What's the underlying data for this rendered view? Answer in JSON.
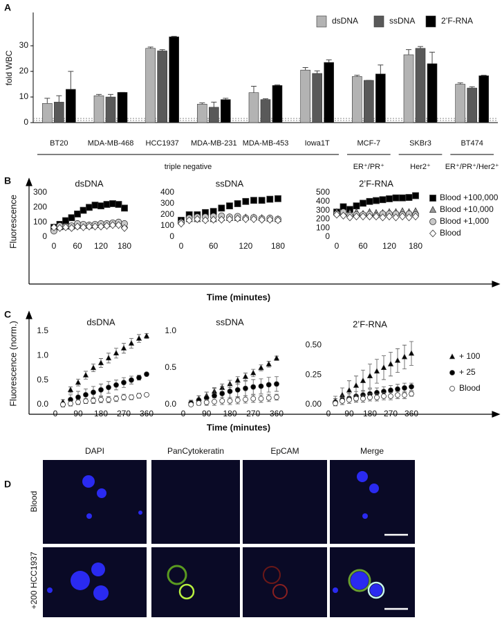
{
  "chart_data": [
    {
      "type": "bar",
      "panel": "A",
      "ylabel": "fold WBC",
      "categories": [
        "BT20",
        "MDA-MB-468",
        "HCC1937",
        "MDA-MB-231",
        "MDA-MB-453",
        "Iowa1T",
        "MCF-7",
        "SKBr3",
        "BT474"
      ],
      "group_labels": [
        "triple negative",
        "ER⁺/PR⁺",
        "Her2⁺",
        "ER⁺/PR⁺/Her2⁺"
      ],
      "series": [
        {
          "name": "dsDNA",
          "color": "#b3b3b3",
          "values": [
            7.5,
            10.5,
            29,
            7.2,
            11.7,
            20.5,
            18,
            26.5,
            15
          ],
          "errors": [
            2,
            0.5,
            0.5,
            0.5,
            2.5,
            1,
            0.5,
            2,
            0.5
          ]
        },
        {
          "name": "ssDNA",
          "color": "#595959",
          "values": [
            8,
            10,
            28,
            6,
            9,
            19.2,
            16.5,
            29,
            13.5
          ],
          "errors": [
            2.5,
            1,
            0.5,
            2,
            0.3,
            1,
            0,
            0.7,
            0.5
          ]
        },
        {
          "name": "2’F-RNA",
          "color": "#000000",
          "values": [
            13,
            11.8,
            33.5,
            9,
            14.5,
            23.5,
            19,
            23,
            18.3
          ],
          "errors": [
            7,
            0,
            0.2,
            0.5,
            0.2,
            1,
            3.5,
            4.5,
            0.2
          ]
        }
      ],
      "ylim": [
        0,
        43
      ],
      "yticks": [
        0,
        10,
        20,
        30
      ],
      "legend": "top right"
    },
    {
      "type": "scatter",
      "panel": "B",
      "title": "dsDNA",
      "ylabel": "Fluorescence",
      "x": [
        0,
        15,
        30,
        45,
        60,
        75,
        90,
        105,
        120,
        135,
        150,
        165,
        180
      ],
      "series": [
        {
          "marker": "square",
          "color": "#000000",
          "values": [
            65,
            85,
            110,
            130,
            155,
            180,
            200,
            215,
            210,
            220,
            225,
            220,
            195
          ]
        },
        {
          "marker": "triangle",
          "color": "#999999",
          "values": [
            60,
            65,
            70,
            70,
            75,
            80,
            75,
            80,
            80,
            85,
            90,
            95,
            80
          ]
        },
        {
          "marker": "circle",
          "color": "#c8c8c8",
          "values": [
            40,
            75,
            70,
            75,
            90,
            85,
            80,
            85,
            90,
            90,
            95,
            100,
            90
          ]
        },
        {
          "marker": "diamond",
          "color": "#ffffff",
          "values": [
            65,
            60,
            65,
            60,
            70,
            65,
            70,
            70,
            70,
            75,
            80,
            80,
            60
          ]
        }
      ],
      "xlim": [
        0,
        180
      ],
      "xticks": [
        0,
        60,
        120,
        180
      ],
      "ylim": [
        0,
        300
      ],
      "yticks": [
        0,
        100,
        200,
        300
      ]
    },
    {
      "type": "scatter",
      "title": "ssDNA",
      "xlabel": "Time (minutes)",
      "x": [
        0,
        15,
        30,
        45,
        60,
        75,
        90,
        105,
        120,
        135,
        150,
        165,
        180
      ],
      "series": [
        {
          "marker": "square",
          "color": "#000000",
          "values": [
            150,
            200,
            200,
            220,
            230,
            260,
            280,
            300,
            320,
            330,
            330,
            340,
            345
          ]
        },
        {
          "marker": "triangle",
          "color": "#999999",
          "values": [
            140,
            160,
            160,
            165,
            160,
            170,
            170,
            170,
            175,
            175,
            170,
            165,
            160
          ]
        },
        {
          "marker": "circle",
          "color": "#c8c8c8",
          "values": [
            130,
            170,
            180,
            180,
            185,
            190,
            180,
            185,
            170,
            175,
            165,
            170,
            160
          ]
        },
        {
          "marker": "diamond",
          "color": "#ffffff",
          "values": [
            120,
            150,
            160,
            150,
            155,
            155,
            160,
            165,
            160,
            160,
            155,
            155,
            150
          ]
        }
      ],
      "xlim": [
        0,
        180
      ],
      "xticks": [
        0,
        60,
        120,
        180
      ],
      "ylim": [
        0,
        400
      ],
      "yticks": [
        0,
        100,
        200,
        300,
        400
      ]
    },
    {
      "type": "scatter",
      "title": "2’F-RNA",
      "legend": "right",
      "x": [
        0,
        15,
        30,
        45,
        60,
        75,
        90,
        105,
        120,
        135,
        150,
        165,
        180
      ],
      "series": [
        {
          "name": "Blood +100,000",
          "marker": "square",
          "color": "#000000",
          "values": [
            280,
            340,
            310,
            350,
            380,
            400,
            410,
            420,
            430,
            440,
            440,
            445,
            465
          ]
        },
        {
          "name": "Blood +10,000",
          "marker": "triangle",
          "color": "#999999",
          "values": [
            280,
            270,
            270,
            280,
            260,
            280,
            270,
            270,
            280,
            280,
            290,
            280,
            290
          ]
        },
        {
          "name": "Blood +1,000",
          "marker": "circle",
          "color": "#c8c8c8",
          "values": [
            260,
            280,
            240,
            250,
            250,
            255,
            240,
            260,
            260,
            260,
            250,
            260,
            250
          ]
        },
        {
          "name": "Blood",
          "marker": "diamond",
          "color": "#ffffff",
          "values": [
            250,
            240,
            220,
            230,
            230,
            230,
            230,
            220,
            230,
            220,
            230,
            220,
            230
          ]
        }
      ],
      "xlim": [
        0,
        180
      ],
      "xticks": [
        0,
        60,
        120,
        180
      ],
      "ylim": [
        0,
        500
      ],
      "yticks": [
        0,
        100,
        200,
        300,
        400,
        500
      ]
    },
    {
      "type": "scatter",
      "panel": "C",
      "title": "dsDNA",
      "ylabel": "Fluorescence (norm.)",
      "x": [
        30,
        60,
        90,
        120,
        150,
        180,
        210,
        240,
        270,
        300,
        330,
        360
      ],
      "series": [
        {
          "marker": "triangle",
          "color": "#000000",
          "values": [
            0.05,
            0.3,
            0.45,
            0.6,
            0.75,
            0.85,
            0.95,
            1.05,
            1.15,
            1.25,
            1.35,
            1.4
          ],
          "errors": [
            0.05,
            0.06,
            0.07,
            0.08,
            0.08,
            0.09,
            0.1,
            0.1,
            0.1,
            0.1,
            0.08,
            0.05
          ]
        },
        {
          "marker": "circle",
          "color": "#000000",
          "values": [
            0,
            0.1,
            0.15,
            0.2,
            0.25,
            0.3,
            0.35,
            0.4,
            0.45,
            0.5,
            0.55,
            0.62
          ],
          "errors": [
            0.05,
            0.1,
            0.12,
            0.12,
            0.12,
            0.12,
            0.12,
            0.1,
            0.1,
            0.08,
            0.05,
            0.02
          ]
        },
        {
          "marker": "circle",
          "color": "#ffffff",
          "values": [
            0,
            0.02,
            0.05,
            0.07,
            0.08,
            0.1,
            0.1,
            0.12,
            0.15,
            0.15,
            0.18,
            0.2
          ],
          "errors": [
            0.03,
            0.05,
            0.05,
            0.05,
            0.06,
            0.06,
            0.06,
            0.06,
            0.06,
            0.05,
            0.05,
            0.03
          ]
        }
      ],
      "xlim": [
        0,
        360
      ],
      "xticks": [
        0,
        90,
        180,
        270,
        360
      ],
      "ylim": [
        0,
        1.5
      ],
      "yticks": [
        {
          "value": 0,
          "label": "0.0"
        },
        {
          "value": 0.5,
          "label": "0.5"
        },
        {
          "value": 1,
          "label": "1.0"
        },
        {
          "value": 1.5,
          "label": "1.5"
        }
      ]
    },
    {
      "type": "scatter",
      "title": "ssDNA",
      "xlabel": "Time (minutes)",
      "x": [
        30,
        60,
        90,
        120,
        150,
        180,
        210,
        240,
        270,
        300,
        330,
        360
      ],
      "series": [
        {
          "marker": "triangle",
          "color": "#000000",
          "values": [
            0.02,
            0.08,
            0.12,
            0.18,
            0.23,
            0.28,
            0.33,
            0.38,
            0.43,
            0.5,
            0.55,
            0.63
          ],
          "errors": [
            0.03,
            0.04,
            0.05,
            0.05,
            0.05,
            0.05,
            0.05,
            0.05,
            0.05,
            0.04,
            0.04,
            0.03
          ]
        },
        {
          "marker": "circle",
          "color": "#000000",
          "values": [
            0.02,
            0.06,
            0.09,
            0.12,
            0.15,
            0.18,
            0.2,
            0.22,
            0.24,
            0.25,
            0.27,
            0.28
          ],
          "errors": [
            0.04,
            0.06,
            0.08,
            0.1,
            0.1,
            0.1,
            0.1,
            0.1,
            0.1,
            0.1,
            0.1,
            0.1
          ]
        },
        {
          "marker": "circle",
          "color": "#ffffff",
          "values": [
            0,
            0.02,
            0.03,
            0.04,
            0.05,
            0.05,
            0.06,
            0.07,
            0.08,
            0.08,
            0.09,
            0.1
          ],
          "errors": [
            0.02,
            0.03,
            0.04,
            0.05,
            0.05,
            0.05,
            0.05,
            0.05,
            0.05,
            0.05,
            0.05,
            0.04
          ]
        }
      ],
      "xlim": [
        0,
        360
      ],
      "xticks": [
        0,
        90,
        180,
        270,
        360
      ],
      "ylim": [
        0,
        1
      ],
      "yticks": [
        {
          "value": 0,
          "label": "0.0"
        },
        {
          "value": 0.5,
          "label": "0.5"
        },
        {
          "value": 1,
          "label": "1.0"
        }
      ]
    },
    {
      "type": "scatter",
      "title": "2’F-RNA",
      "legend": "right",
      "x": [
        30,
        60,
        90,
        120,
        150,
        180,
        210,
        240,
        270,
        300,
        330,
        360
      ],
      "series": [
        {
          "name": "+ 100",
          "marker": "triangle",
          "color": "#000000",
          "values": [
            0.03,
            0.08,
            0.12,
            0.16,
            0.2,
            0.24,
            0.28,
            0.31,
            0.34,
            0.37,
            0.4,
            0.43
          ],
          "errors": [
            0.04,
            0.06,
            0.08,
            0.08,
            0.09,
            0.1,
            0.1,
            0.1,
            0.1,
            0.1,
            0.1,
            0.1
          ]
        },
        {
          "name": "+ 25",
          "marker": "circle",
          "color": "#000000",
          "values": [
            0.02,
            0.04,
            0.05,
            0.07,
            0.08,
            0.09,
            0.1,
            0.11,
            0.12,
            0.13,
            0.14,
            0.15
          ],
          "errors": [
            0.03,
            0.04,
            0.04,
            0.04,
            0.04,
            0.04,
            0.04,
            0.04,
            0.04,
            0.04,
            0.04,
            0.03
          ]
        },
        {
          "name": "Blood",
          "marker": "circle",
          "color": "#ffffff",
          "values": [
            0.01,
            0.03,
            0.04,
            0.05,
            0.05,
            0.06,
            0.06,
            0.07,
            0.07,
            0.08,
            0.08,
            0.09
          ],
          "errors": [
            0.02,
            0.03,
            0.03,
            0.03,
            0.03,
            0.03,
            0.03,
            0.03,
            0.03,
            0.03,
            0.03,
            0.02
          ]
        }
      ],
      "xlim": [
        0,
        360
      ],
      "xticks": [
        0,
        90,
        180,
        270,
        360
      ],
      "ylim": [
        0,
        0.6
      ],
      "yticks": [
        {
          "value": 0,
          "label": "0.00"
        },
        {
          "value": 0.25,
          "label": "0.25"
        },
        {
          "value": 0.5,
          "label": "0.50"
        }
      ]
    }
  ],
  "panel_d": {
    "label": "D",
    "columns": [
      "DAPI",
      "PanCytokeratin",
      "EpCAM",
      "Merge"
    ],
    "rows": [
      "Blood",
      "+200 HCC1937"
    ]
  }
}
